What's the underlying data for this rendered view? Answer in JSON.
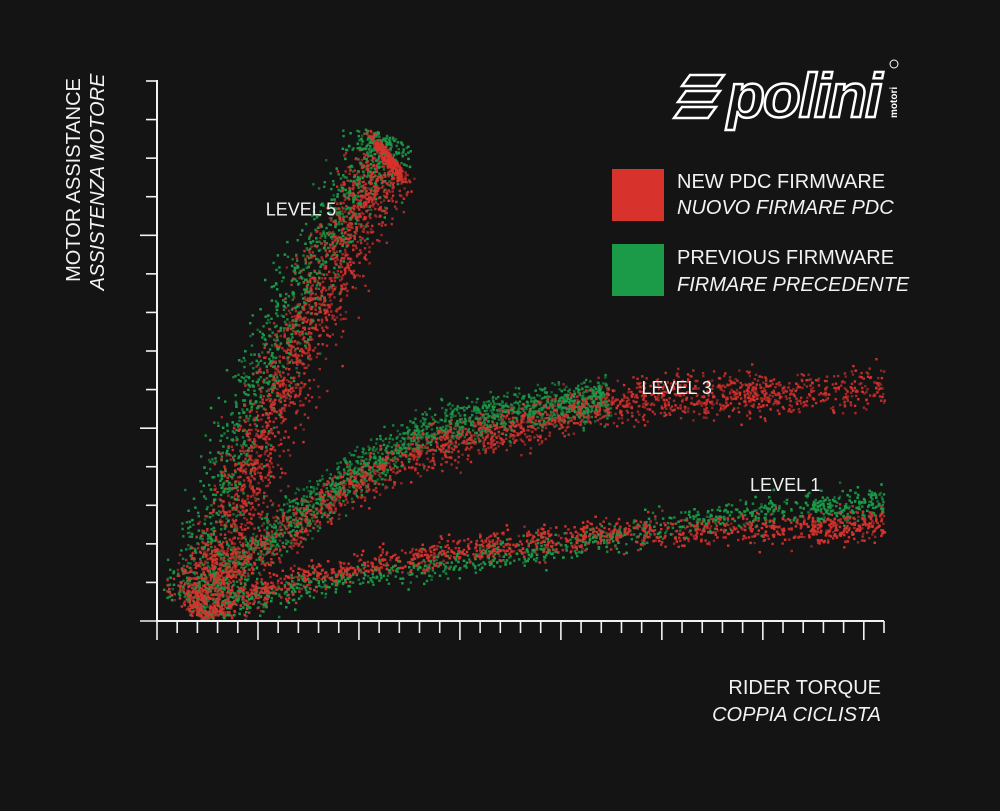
{
  "brand": {
    "name": "polini",
    "sub": "motori"
  },
  "chart_data": {
    "type": "scatter",
    "xlabel": [
      "RIDER TORQUE",
      "COPPIA CICLISTA"
    ],
    "ylabel": [
      "MOTOR ASSISTANCE",
      "ASSISTENZA MOTORE"
    ],
    "xlim": [
      0,
      100
    ],
    "ylim": [
      0,
      100
    ],
    "x_tick_count": 36,
    "x_major_every": 5,
    "y_tick_count": 14,
    "y_major_every": 5,
    "grid": false,
    "legend_position": "top-right",
    "legend": [
      {
        "label": "NEW PDC FIRMWARE",
        "label_it": "NUOVO FIRMARE PDC",
        "color": "#d8322d"
      },
      {
        "label": "PREVIOUS FIRMWARE",
        "label_it": "FIRMARE PRECEDENTE",
        "color": "#1b9a48"
      }
    ],
    "annotations": [
      {
        "text": "LEVEL 5",
        "x": 14.6,
        "y": 75
      },
      {
        "text": "LEVEL 3",
        "x": 66.5,
        "y": 42
      },
      {
        "text": "LEVEL 1",
        "x": 81.5,
        "y": 24
      }
    ],
    "series": [
      {
        "name": "NEW PDC FIRMWARE",
        "level": "LEVEL 5",
        "color": "#d8322d",
        "points": [
          [
            4,
            2
          ],
          [
            8,
            12
          ],
          [
            12,
            26
          ],
          [
            16,
            40
          ],
          [
            20,
            54
          ],
          [
            24,
            66
          ],
          [
            28,
            77
          ],
          [
            31,
            85
          ],
          [
            32,
            86
          ]
        ]
      },
      {
        "name": "PREVIOUS FIRMWARE",
        "level": "LEVEL 5",
        "color": "#1b9a48",
        "points": [
          [
            3,
            3
          ],
          [
            7,
            16
          ],
          [
            11,
            34
          ],
          [
            15,
            48
          ],
          [
            19,
            60
          ],
          [
            23,
            71
          ],
          [
            27,
            80
          ],
          [
            30,
            86
          ],
          [
            31,
            90
          ]
        ]
      },
      {
        "name": "NEW PDC FIRMWARE",
        "level": "LEVEL 3",
        "color": "#d8322d",
        "points": [
          [
            4,
            3
          ],
          [
            15,
            14
          ],
          [
            25,
            24
          ],
          [
            35,
            31
          ],
          [
            45,
            35
          ],
          [
            55,
            38
          ],
          [
            65,
            41
          ],
          [
            75,
            42
          ],
          [
            85,
            42
          ],
          [
            100,
            43
          ]
        ]
      },
      {
        "name": "PREVIOUS FIRMWARE",
        "level": "LEVEL 3",
        "color": "#1b9a48",
        "points": [
          [
            4,
            3
          ],
          [
            15,
            15
          ],
          [
            25,
            26
          ],
          [
            35,
            34
          ],
          [
            45,
            38
          ],
          [
            55,
            40
          ],
          [
            62,
            41
          ]
        ]
      },
      {
        "name": "NEW PDC FIRMWARE",
        "level": "LEVEL 1",
        "color": "#d8322d",
        "points": [
          [
            4,
            1
          ],
          [
            15,
            6
          ],
          [
            30,
            11
          ],
          [
            45,
            14
          ],
          [
            60,
            16
          ],
          [
            75,
            17
          ],
          [
            90,
            17
          ],
          [
            100,
            18
          ]
        ]
      },
      {
        "name": "PREVIOUS FIRMWARE",
        "level": "LEVEL 1",
        "color": "#1b9a48",
        "points": [
          [
            4,
            1
          ],
          [
            15,
            5
          ],
          [
            30,
            9
          ],
          [
            45,
            12
          ],
          [
            60,
            15
          ],
          [
            75,
            19
          ],
          [
            90,
            21
          ],
          [
            100,
            22
          ]
        ]
      }
    ]
  }
}
